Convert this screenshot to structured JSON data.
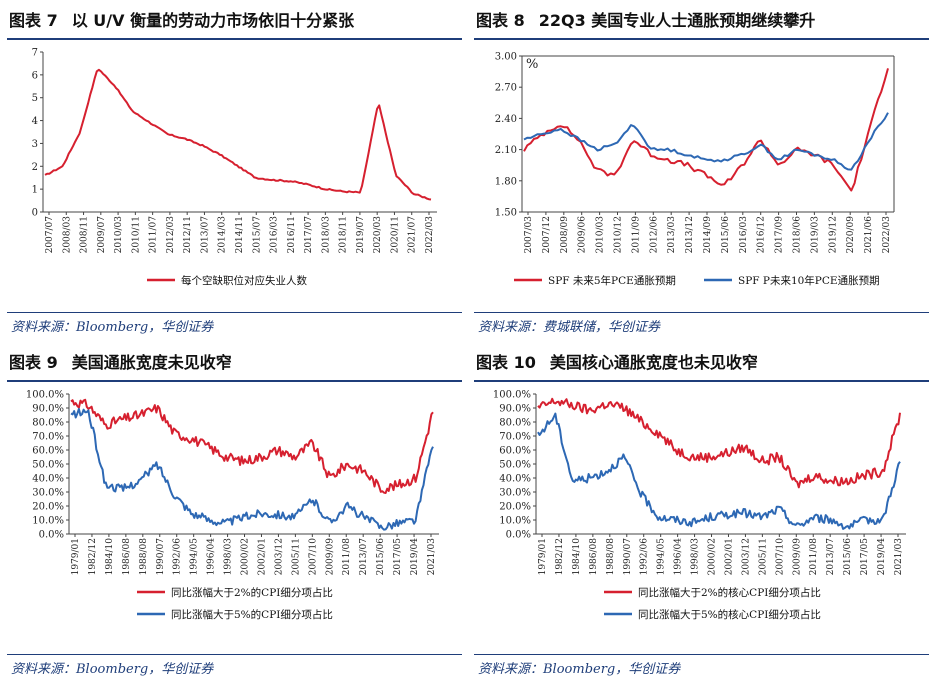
{
  "figures": [
    {
      "label": "图表 7",
      "title": "以 U/V 衡量的劳动力市场依旧十分紧张",
      "source": "资料来源：Bloomberg，华创证券"
    },
    {
      "label": "图表 8",
      "title": "22Q3 美国专业人士通胀预期继续攀升",
      "source": "资料来源：费城联储，华创证券"
    },
    {
      "label": "图表 9",
      "title": "美国通胀宽度未见收窄",
      "source": "资料来源：Bloomberg，华创证券"
    },
    {
      "label": "图表 10",
      "title": "美国核心通胀宽度也未见收窄",
      "source": "资料来源：Bloomberg，华创证券"
    }
  ],
  "chart_data": [
    {
      "type": "line",
      "title": "以 U/V 衡量的劳动力市场依旧十分紧张",
      "ylim": [
        0,
        7
      ],
      "yticks": [
        0,
        1,
        2,
        3,
        4,
        5,
        6,
        7
      ],
      "ytick_labels": [
        "0",
        "1",
        "2",
        "3",
        "4",
        "5",
        "6",
        "7"
      ],
      "x": [
        "2007/07",
        "2008/03",
        "2008/11",
        "2009/07",
        "2010/03",
        "2010/11",
        "2011/07",
        "2012/03",
        "2012/11",
        "2013/07",
        "2014/03",
        "2014/11",
        "2015/07",
        "2016/03",
        "2016/11",
        "2017/07",
        "2018/03",
        "2018/11",
        "2019/07",
        "2020/03",
        "2020/11",
        "2021/07",
        "2022/03"
      ],
      "series": [
        {
          "name": "每个空缺职位对应失业人数",
          "color": "#d6202f",
          "values": [
            1.6,
            2.0,
            3.5,
            6.3,
            5.5,
            4.4,
            3.9,
            3.4,
            3.2,
            2.9,
            2.5,
            2.0,
            1.5,
            1.4,
            1.35,
            1.2,
            1.0,
            0.9,
            0.85,
            4.8,
            1.6,
            0.8,
            0.55
          ]
        }
      ]
    },
    {
      "type": "line",
      "title": "22Q3 美国专业人士通胀预期继续攀升",
      "unit": "%",
      "ylim": [
        1.5,
        3.0
      ],
      "yticks": [
        1.5,
        1.8,
        2.1,
        2.4,
        2.7,
        3.0
      ],
      "ytick_labels": [
        "1.50",
        "1.80",
        "2.10",
        "2.40",
        "2.70",
        "3.00"
      ],
      "x": [
        "2007/03",
        "2007/12",
        "2008/09",
        "2009/06",
        "2010/03",
        "2010/12",
        "2011/09",
        "2012/06",
        "2013/03",
        "2013/12",
        "2014/09",
        "2015/06",
        "2016/03",
        "2016/12",
        "2017/09",
        "2018/06",
        "2019/03",
        "2019/12",
        "2020/09",
        "2021/06",
        "2022/03"
      ],
      "series": [
        {
          "name": "SPF 未来5年PCE通胀预期",
          "color": "#d6202f",
          "values": [
            2.1,
            2.25,
            2.35,
            2.2,
            1.9,
            1.85,
            2.2,
            2.05,
            2.0,
            1.95,
            1.85,
            1.75,
            1.95,
            2.2,
            1.95,
            2.1,
            2.05,
            1.95,
            1.7,
            2.3,
            2.9
          ]
        },
        {
          "name": "SPF P未来10年PCE通胀预期",
          "color": "#2d68b4",
          "values": [
            2.2,
            2.25,
            2.3,
            2.2,
            2.1,
            2.15,
            2.35,
            2.1,
            2.1,
            2.05,
            2.0,
            2.0,
            2.05,
            2.15,
            2.0,
            2.1,
            2.05,
            2.0,
            1.9,
            2.2,
            2.45
          ]
        }
      ]
    },
    {
      "type": "line",
      "title": "美国通胀宽度未见收窄",
      "ylim": [
        0,
        100
      ],
      "yticks": [
        0,
        10,
        20,
        30,
        40,
        50,
        60,
        70,
        80,
        90,
        100
      ],
      "ytick_labels": [
        "0.0%",
        "10.0%",
        "20.0%",
        "30.0%",
        "40.0%",
        "50.0%",
        "60.0%",
        "70.0%",
        "80.0%",
        "90.0%",
        "100.0%"
      ],
      "x": [
        "1979/01",
        "1982/12",
        "1984/10",
        "1986/08",
        "1988/08",
        "1990/07",
        "1992/06",
        "1994/05",
        "1996/04",
        "1998/03",
        "2000/02",
        "2002/01",
        "2003/12",
        "2005/11",
        "2007/10",
        "2009/09",
        "2011/08",
        "2013/07",
        "2015/06",
        "2017/05",
        "2019/04",
        "2021/03"
      ],
      "series": [
        {
          "name": "同比涨幅大于2%的CPI细分项占比",
          "color": "#d6202f",
          "values": [
            95,
            92,
            78,
            82,
            85,
            90,
            72,
            68,
            62,
            55,
            52,
            55,
            60,
            55,
            65,
            40,
            50,
            45,
            32,
            35,
            40,
            88
          ]
        },
        {
          "name": "同比涨幅大于5%的CPI细分项占比",
          "color": "#2d68b4",
          "values": [
            85,
            88,
            35,
            32,
            38,
            50,
            28,
            15,
            10,
            8,
            12,
            15,
            14,
            12,
            25,
            8,
            20,
            12,
            5,
            8,
            10,
            65
          ]
        }
      ]
    },
    {
      "type": "line",
      "title": "美国核心通胀宽度也未见收窄",
      "ylim": [
        0,
        100
      ],
      "yticks": [
        0,
        10,
        20,
        30,
        40,
        50,
        60,
        70,
        80,
        90,
        100
      ],
      "ytick_labels": [
        "0.0%",
        "10.0%",
        "20.0%",
        "30.0%",
        "40.0%",
        "50.0%",
        "60.0%",
        "70.0%",
        "80.0%",
        "90.0%",
        "100.0%"
      ],
      "x": [
        "1979/01",
        "1982/12",
        "1984/10",
        "1986/08",
        "1988/08",
        "1990/07",
        "1992/06",
        "1994/05",
        "1996/04",
        "1998/03",
        "2000/02",
        "2002/01",
        "2003/12",
        "2005/11",
        "2007/10",
        "2009/09",
        "2011/08",
        "2013/07",
        "2015/06",
        "2017/05",
        "2019/04",
        "2021/03"
      ],
      "series": [
        {
          "name": "同比涨幅大于2%的核心CPI细分项占比",
          "color": "#d6202f",
          "values": [
            90,
            95,
            92,
            88,
            93,
            90,
            80,
            72,
            60,
            55,
            55,
            58,
            62,
            52,
            55,
            35,
            42,
            38,
            38,
            42,
            45,
            85
          ]
        },
        {
          "name": "同比涨幅大于5%的核心CPI细分项占比",
          "color": "#2d68b4",
          "values": [
            70,
            85,
            38,
            40,
            45,
            55,
            28,
            12,
            10,
            8,
            12,
            14,
            15,
            12,
            18,
            5,
            12,
            10,
            5,
            10,
            10,
            52
          ]
        }
      ]
    }
  ]
}
